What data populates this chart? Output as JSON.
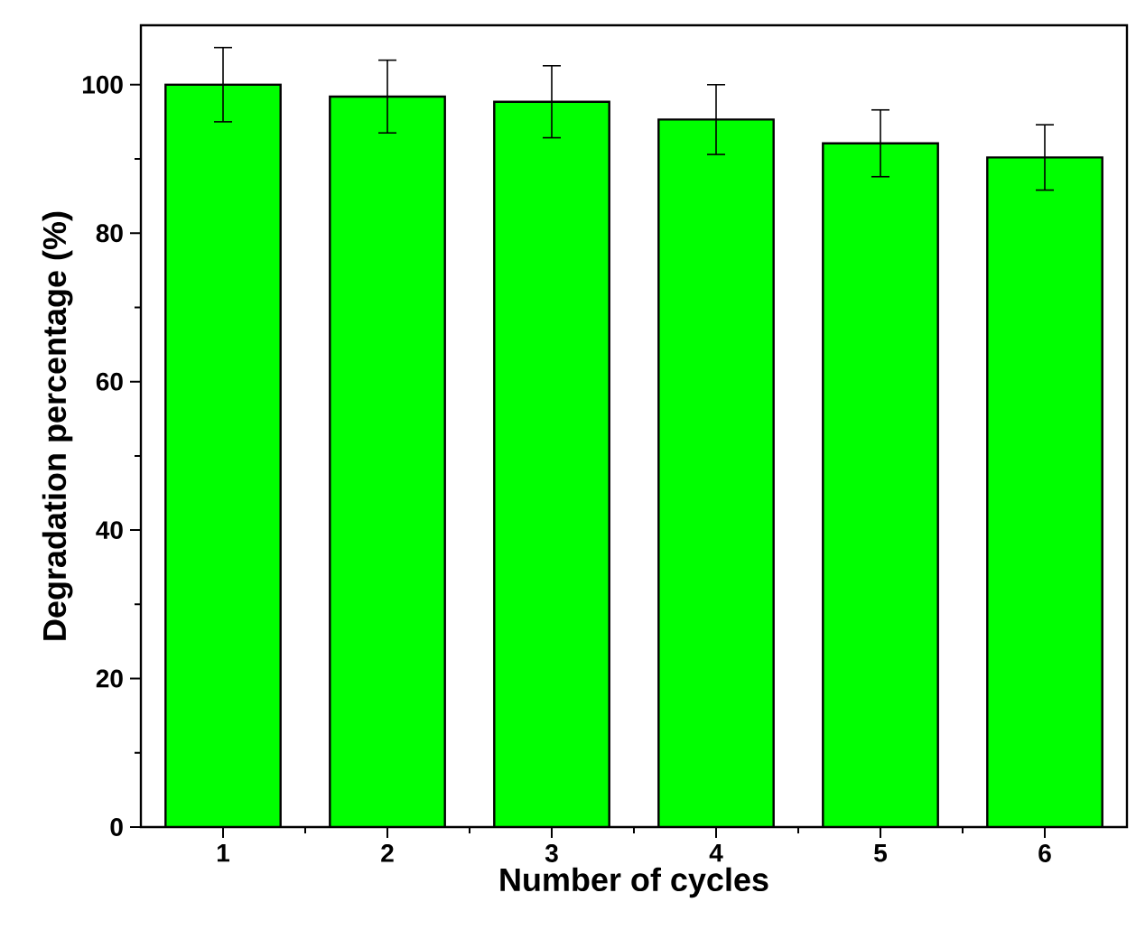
{
  "chart_data": {
    "type": "bar",
    "xlabel": "Number of cycles",
    "ylabel": "Degradation percentage (%)",
    "categories": [
      "1",
      "2",
      "3",
      "4",
      "5",
      "6"
    ],
    "values": [
      100,
      98.4,
      97.7,
      95.3,
      92.1,
      90.2
    ],
    "errors": [
      5,
      4.9,
      4.85,
      4.7,
      4.5,
      4.4
    ],
    "color": "#00ff00",
    "ylim": [
      0,
      108
    ],
    "yticks": [
      0,
      20,
      40,
      60,
      80,
      100
    ]
  }
}
